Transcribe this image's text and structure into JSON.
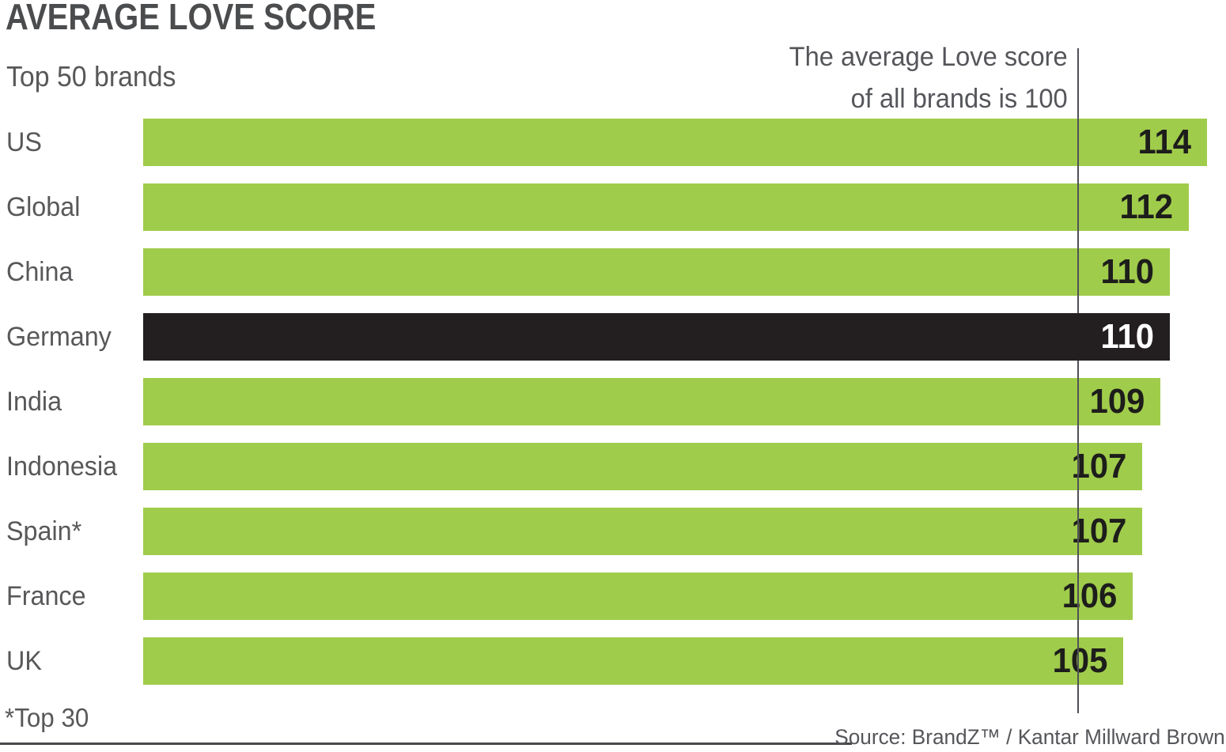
{
  "title": "AVERAGE LOVE SCORE",
  "subtitle": "Top 50 brands",
  "annotation": {
    "line1": "The average Love score",
    "line2": "of all brands is 100"
  },
  "footnote": "*Top 30",
  "source": "Source: BrandZ™ / Kantar Millward Brown",
  "colors": {
    "bar_green": "#a0cc4b",
    "bar_highlight": "#231f20",
    "value_text": "#1d1d1b",
    "value_text_highlight": "#ffffff",
    "label_gray": "#58585a",
    "title_gray": "#4b4c4e",
    "reference_line_gray": "#505156"
  },
  "chart_data": {
    "type": "bar",
    "orientation": "horizontal",
    "title": "AVERAGE LOVE SCORE",
    "subtitle": "Top 50 brands",
    "categories": [
      "US",
      "Global",
      "China",
      "Germany",
      "India",
      "Indonesia",
      "Spain*",
      "France",
      "UK"
    ],
    "values": [
      114,
      112,
      110,
      110,
      109,
      107,
      107,
      106,
      105
    ],
    "highlighted_category": "Germany",
    "reference_line": {
      "value": 100,
      "label": "The average Love score of all brands is 100"
    },
    "xlim": [
      0,
      116
    ],
    "grid": false,
    "legend": false,
    "footnote": "*Top 30",
    "source": "Source: BrandZ™ / Kantar Millward Brown"
  }
}
